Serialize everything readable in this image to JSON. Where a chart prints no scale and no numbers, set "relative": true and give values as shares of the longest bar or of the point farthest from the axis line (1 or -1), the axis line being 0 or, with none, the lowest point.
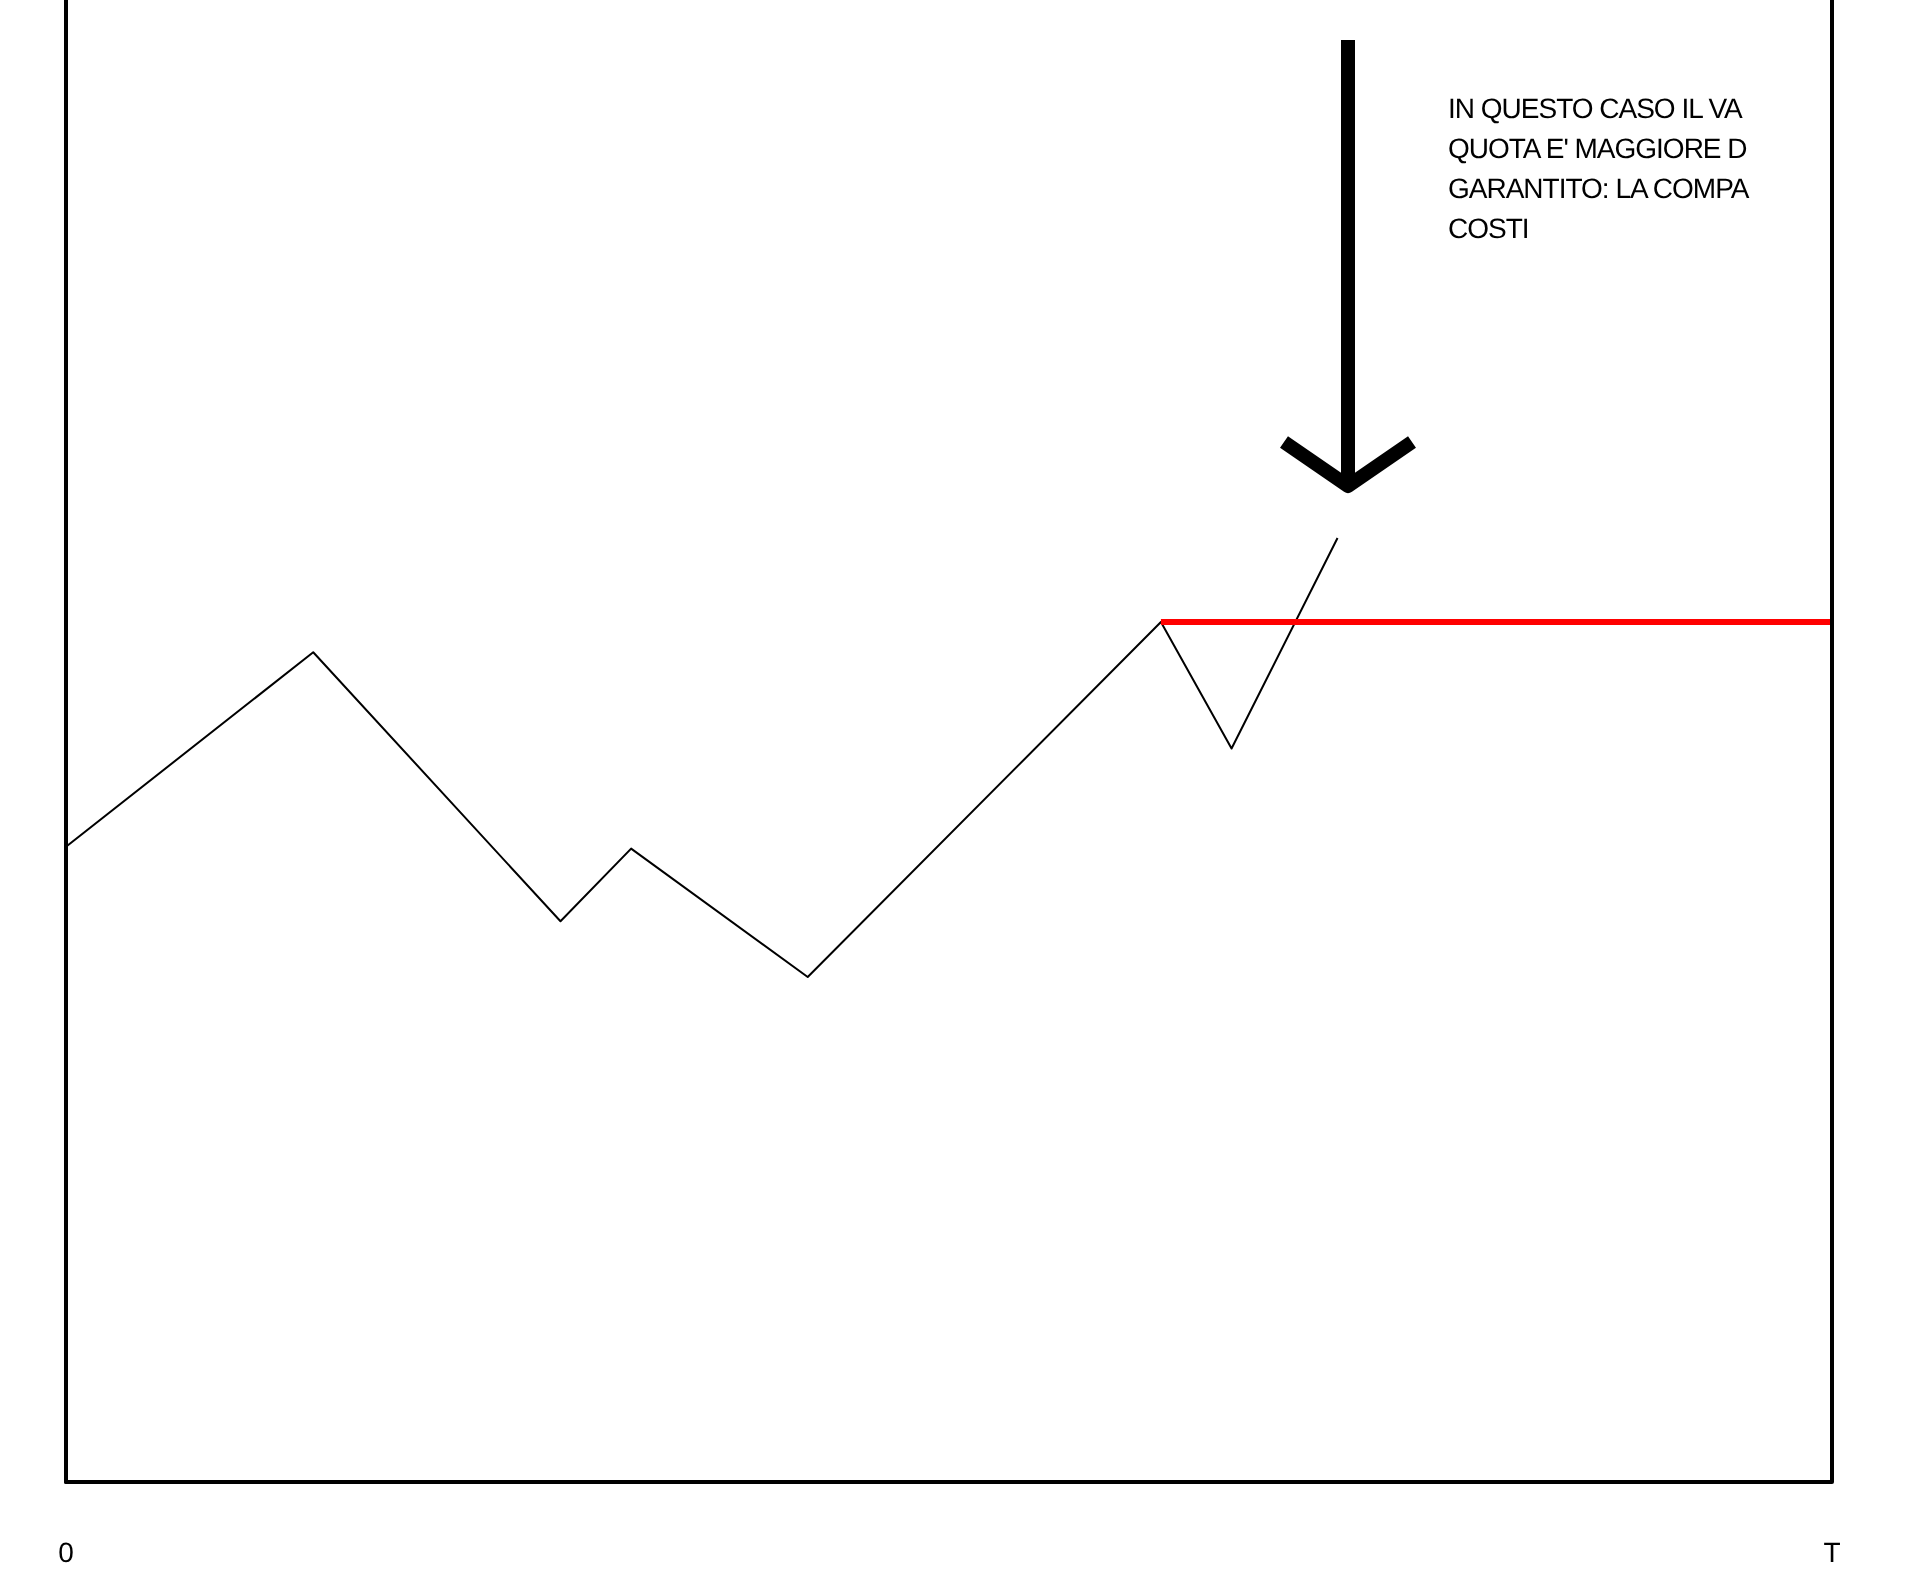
{
  "chart_data": {
    "type": "line",
    "relative": true,
    "categories": [
      "0",
      null,
      null,
      null,
      null,
      null,
      null,
      null,
      null,
      null,
      null,
      null,
      null,
      null,
      null,
      null,
      null,
      null,
      null,
      null,
      null,
      null,
      null,
      null,
      null,
      null,
      null,
      null,
      null,
      null,
      null,
      null,
      null,
      null,
      null,
      null,
      null,
      null,
      null,
      null,
      null,
      null,
      null,
      null,
      null,
      null,
      null,
      null,
      null,
      null,
      "T"
    ],
    "tick_labels": "x",
    "grid": false,
    "marker": "none",
    "line_style": "solid",
    "series": [
      {
        "color": "#000000",
        "values": [
          0.673,
          null,
          null,
          null,
          null,
          null,
          null,
          0.879,
          null,
          null,
          null,
          null,
          null,
          null,
          0.594,
          null,
          0.671,
          null,
          null,
          null,
          null,
          0.535,
          null,
          null,
          null,
          null,
          null,
          null,
          null,
          null,
          null,
          0.911,
          null,
          0.777,
          null,
          null,
          1,
          null,
          null,
          null,
          null,
          null,
          null,
          null,
          null,
          null,
          null,
          null,
          null,
          null,
          null
        ]
      },
      {
        "color": "#ff0000",
        "values": [
          null,
          null,
          null,
          null,
          null,
          null,
          null,
          null,
          null,
          null,
          null,
          null,
          null,
          null,
          null,
          null,
          null,
          null,
          null,
          null,
          null,
          null,
          null,
          null,
          null,
          null,
          null,
          null,
          null,
          null,
          null,
          0.911,
          null,
          null,
          null,
          null,
          null,
          null,
          null,
          null,
          null,
          null,
          null,
          null,
          null,
          null,
          null,
          null,
          null,
          null,
          0.911
        ]
      }
    ],
    "ref_lines": [
      {
        "axis": "x",
        "value": "T",
        "color": "#000000"
      }
    ],
    "annotations": [
      "IN QUESTO CASO IL VA\nQUOTA E' MAGGIORE D\nGARANTITO: LA COMPA\nCOSTI"
    ]
  }
}
